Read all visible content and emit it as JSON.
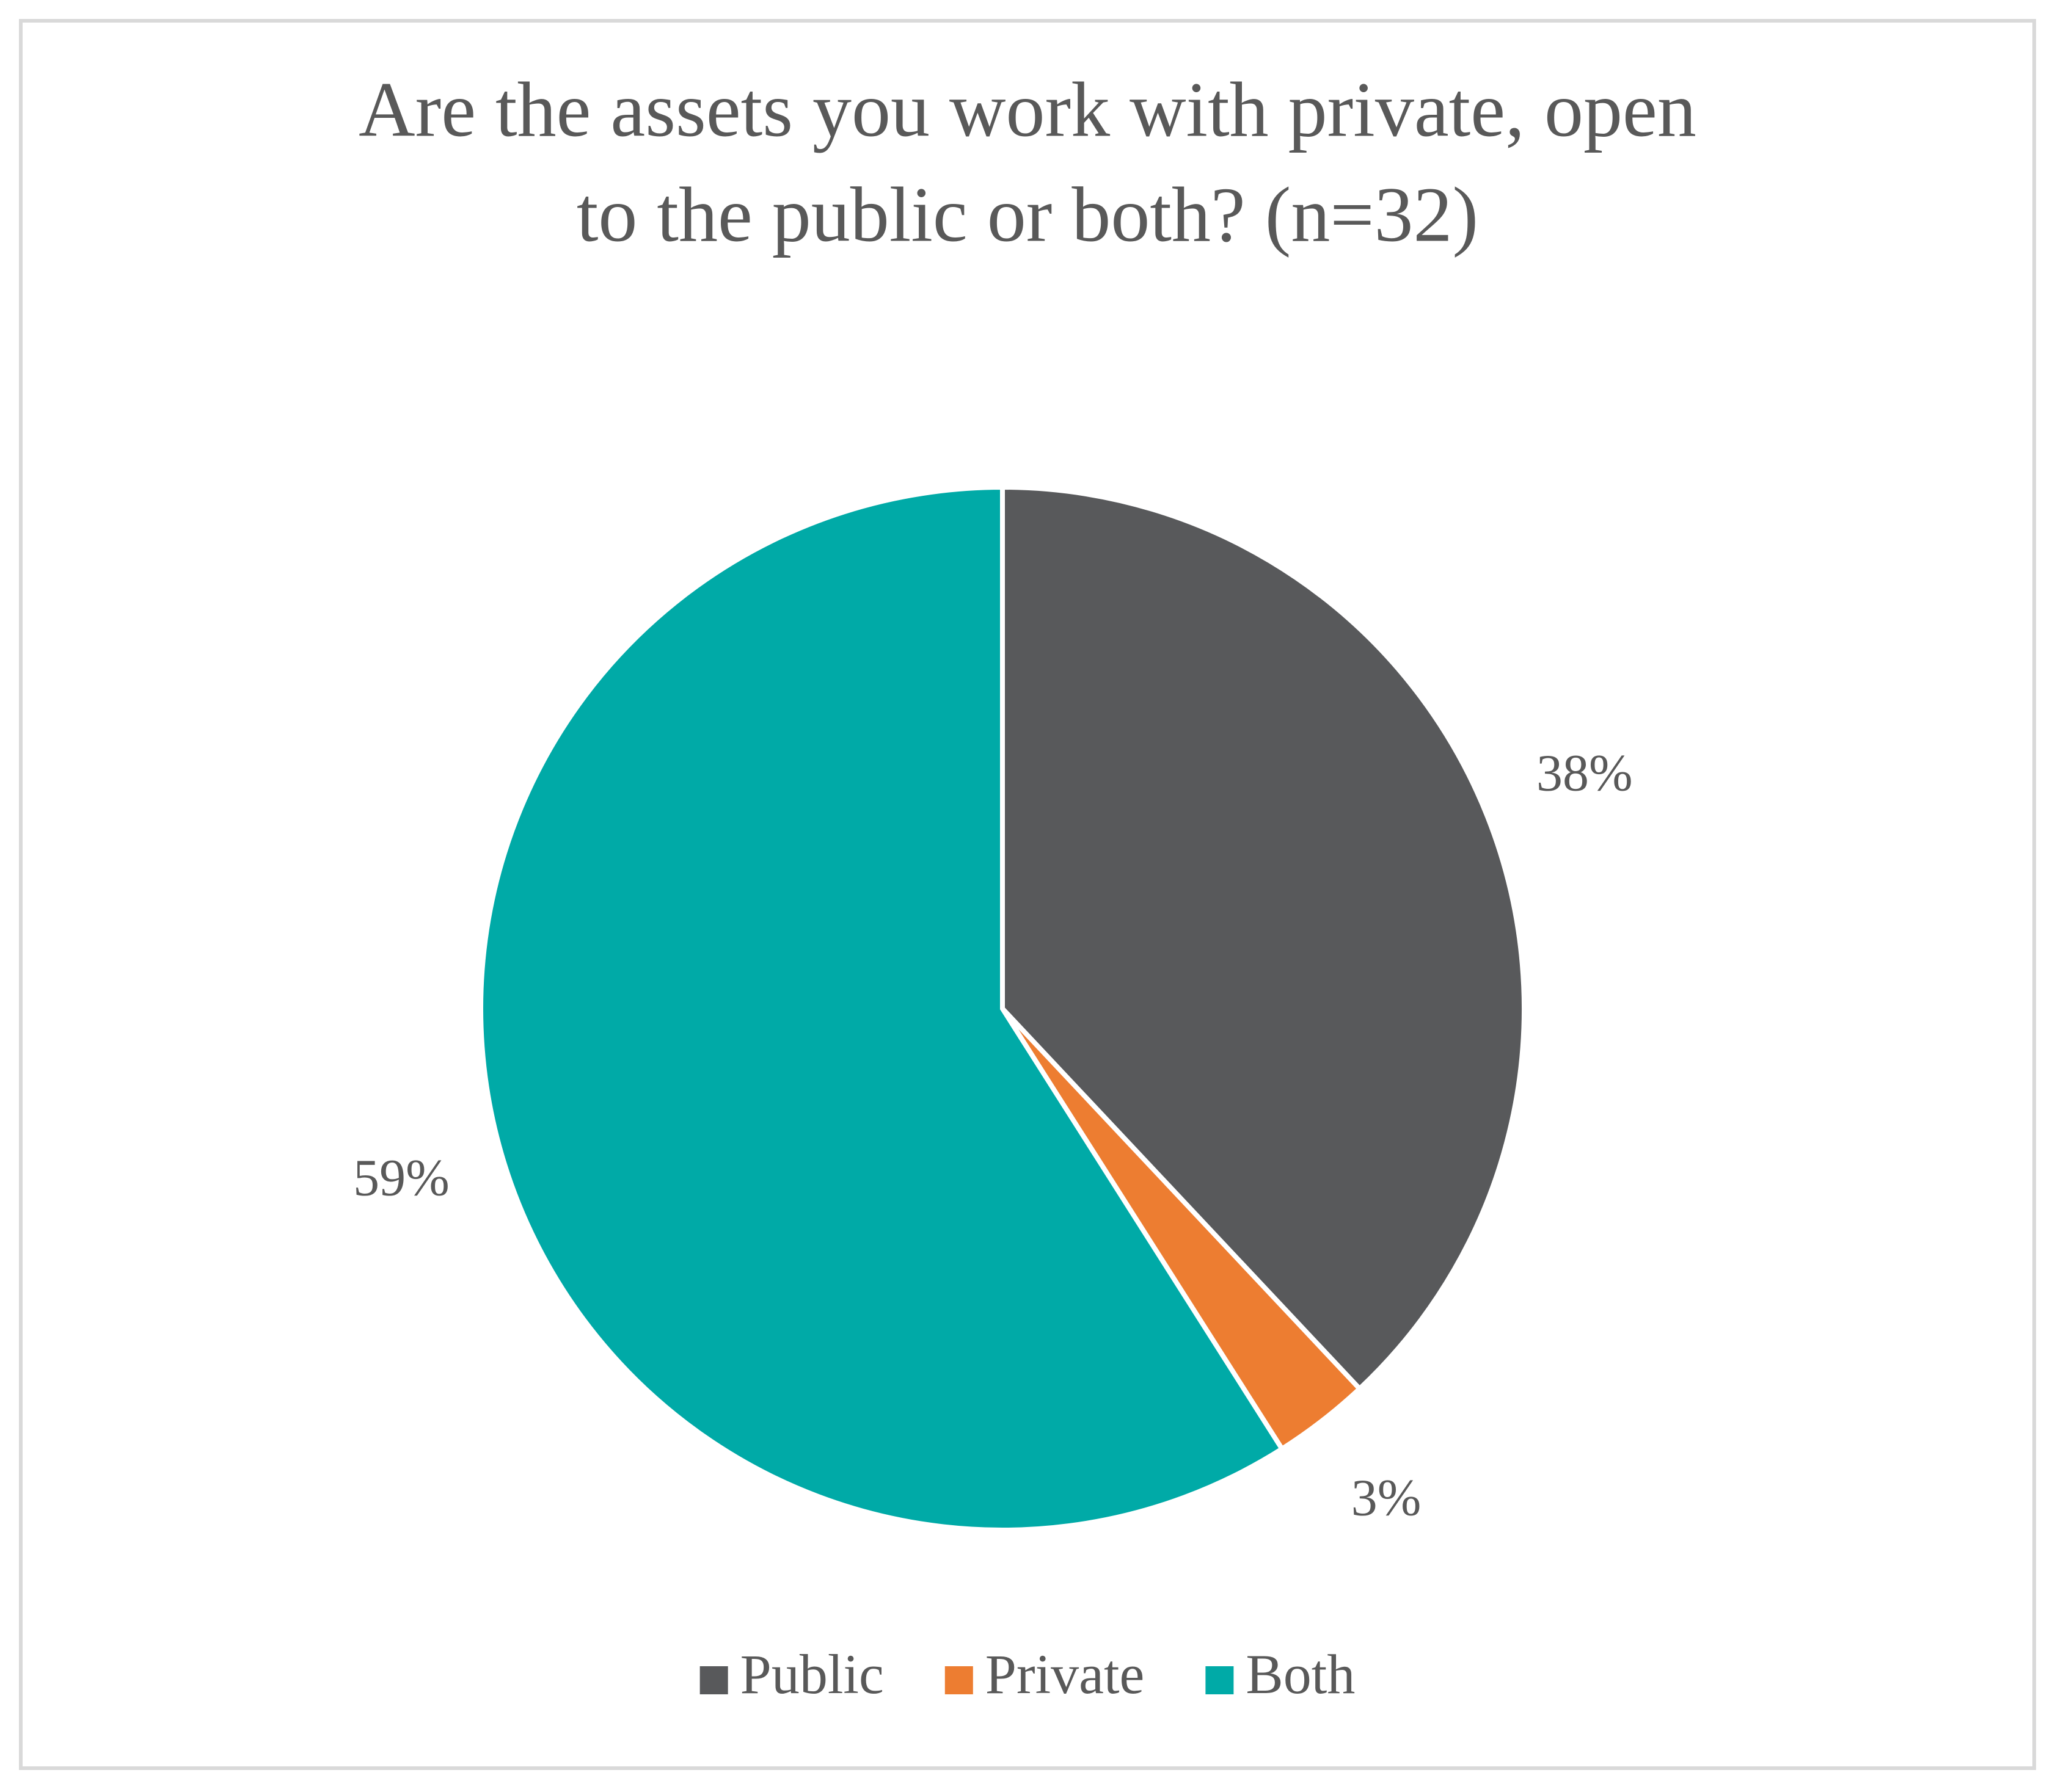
{
  "chart_data": {
    "type": "pie",
    "title": [
      "Are the assets you work with private, open",
      "to the public or both? (n=32)"
    ],
    "categories": [
      "Public",
      "Private",
      "Both"
    ],
    "values": [
      38,
      3,
      59
    ],
    "value_labels": [
      "38%",
      "3%",
      "59%"
    ],
    "colors": [
      "#58595b",
      "#ed7d31",
      "#00aaa7"
    ],
    "legend": "bottom"
  }
}
